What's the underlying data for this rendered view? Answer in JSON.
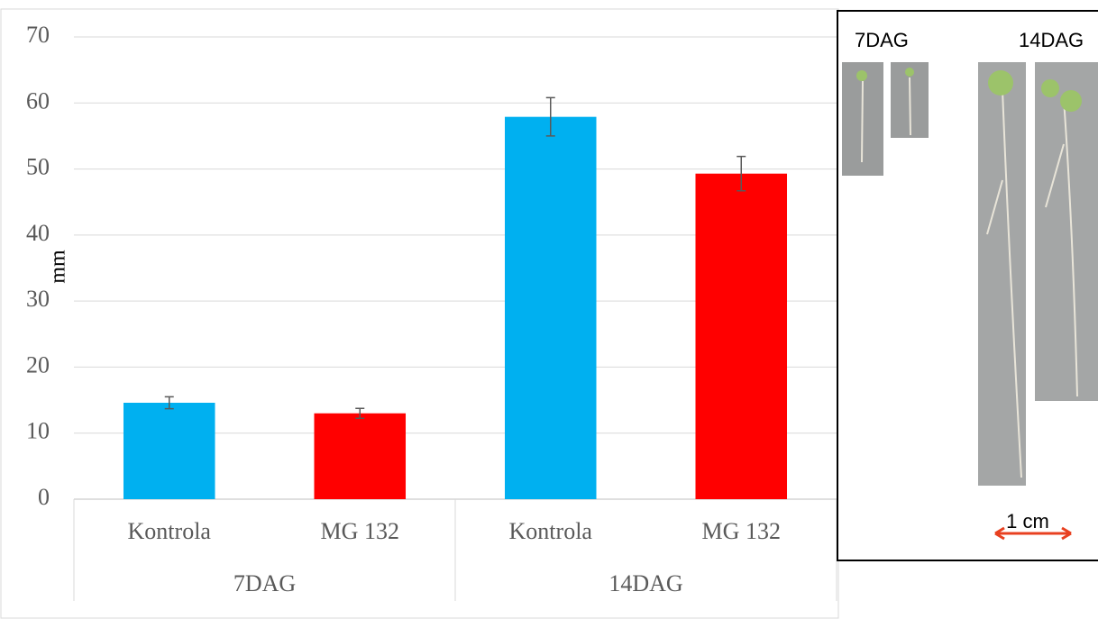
{
  "chart_data": {
    "type": "bar",
    "y_label": "mm",
    "categories": [
      "Kontrola",
      "MG 132",
      "Kontrola",
      "MG 132"
    ],
    "groups": [
      "7DAG",
      "14DAG"
    ],
    "values": [
      14.6,
      13.0,
      57.9,
      49.3
    ],
    "errors": [
      0.9,
      0.75,
      2.9,
      2.6
    ],
    "colors": [
      "#00b0f0",
      "#ff0000",
      "#00b0f0",
      "#ff0000"
    ],
    "ylim": [
      0,
      70
    ],
    "yticks": [
      0,
      10,
      20,
      30,
      40,
      50,
      60,
      70
    ],
    "grid": true
  },
  "inset": {
    "labels": [
      "7DAG",
      "14DAG"
    ],
    "scale_bar": "1 cm"
  }
}
